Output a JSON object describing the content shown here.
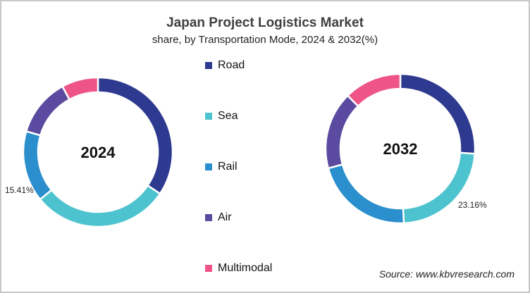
{
  "chart_data": [
    {
      "type": "pie",
      "subtype": "donut",
      "title": "Japan Project Logistics Market",
      "subtitle": "share, by Transportation Mode, 2024 & 2032(%)",
      "center_label": "2024",
      "categories": [
        "Road",
        "Sea",
        "Rail",
        "Air",
        "Multimodal"
      ],
      "values": [
        34.4,
        29.7,
        15.41,
        12.6,
        7.89
      ],
      "labeled_values": {
        "Rail": "15.41%"
      },
      "start_angle": "12 o'clock, clockwise"
    },
    {
      "type": "pie",
      "subtype": "donut",
      "title": "Japan Project Logistics Market",
      "subtitle": "share, by Transportation Mode, 2024 & 2032(%)",
      "center_label": "2032",
      "categories": [
        "Road",
        "Sea",
        "Rail",
        "Air",
        "Multimodal"
      ],
      "values": [
        26.1,
        23.16,
        21.5,
        16.8,
        12.44
      ],
      "labeled_values": {
        "Sea": "23.16%"
      },
      "start_angle": "12 o'clock, clockwise"
    }
  ],
  "header": {
    "title": "Japan Project Logistics Market",
    "subtitle": "share, by Transportation Mode, 2024 & 2032(%)"
  },
  "legend": [
    {
      "label": "Road",
      "color": "#2E3A8F"
    },
    {
      "label": "Sea",
      "color": "#4DC3CF"
    },
    {
      "label": "Rail",
      "color": "#2A8FCC"
    },
    {
      "label": "Air",
      "color": "#5B4BA0"
    },
    {
      "label": "Multimodal",
      "color": "#EE5487"
    }
  ],
  "donut_2024": {
    "center_label": "2024",
    "callout": "15.41%"
  },
  "donut_2032": {
    "center_label": "2032",
    "callout": "23.16%"
  },
  "footer": {
    "source": "Source: www.kbvresearch.com"
  }
}
